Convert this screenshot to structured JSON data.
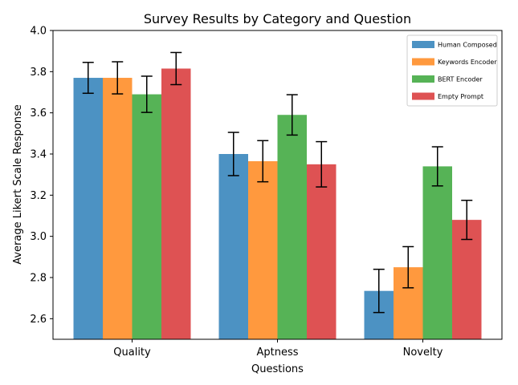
{
  "chart_data": {
    "type": "bar",
    "title": "Survey Results by Category and Question",
    "xlabel": "Questions",
    "ylabel": "Average Likert Scale Response",
    "categories": [
      "Quality",
      "Aptness",
      "Novelty"
    ],
    "ylim": [
      2.5,
      4.0
    ],
    "yticks": [
      2.6,
      2.8,
      3.0,
      3.2,
      3.4,
      3.6,
      3.8,
      4.0
    ],
    "ytick_labels": [
      "2.6",
      "2.8",
      "3.0",
      "3.2",
      "3.4",
      "3.6",
      "3.8",
      "4.0"
    ],
    "legend_position": "top-right",
    "grid": false,
    "series": [
      {
        "name": "Human Composed",
        "color": "#1f77b4",
        "values": [
          3.77,
          3.4,
          2.735
        ],
        "errors": [
          0.075,
          0.105,
          0.105
        ]
      },
      {
        "name": "Keywords Encoder",
        "color": "#ff7f0e",
        "values": [
          3.77,
          3.365,
          2.85
        ],
        "errors": [
          0.078,
          0.1,
          0.1
        ]
      },
      {
        "name": "BERT Encoder",
        "color": "#2ca02c",
        "values": [
          3.69,
          3.59,
          3.34
        ],
        "errors": [
          0.088,
          0.098,
          0.095
        ]
      },
      {
        "name": "Empty Prompt",
        "color": "#d62728",
        "values": [
          3.815,
          3.35,
          3.08
        ],
        "errors": [
          0.078,
          0.11,
          0.095
        ]
      }
    ]
  }
}
